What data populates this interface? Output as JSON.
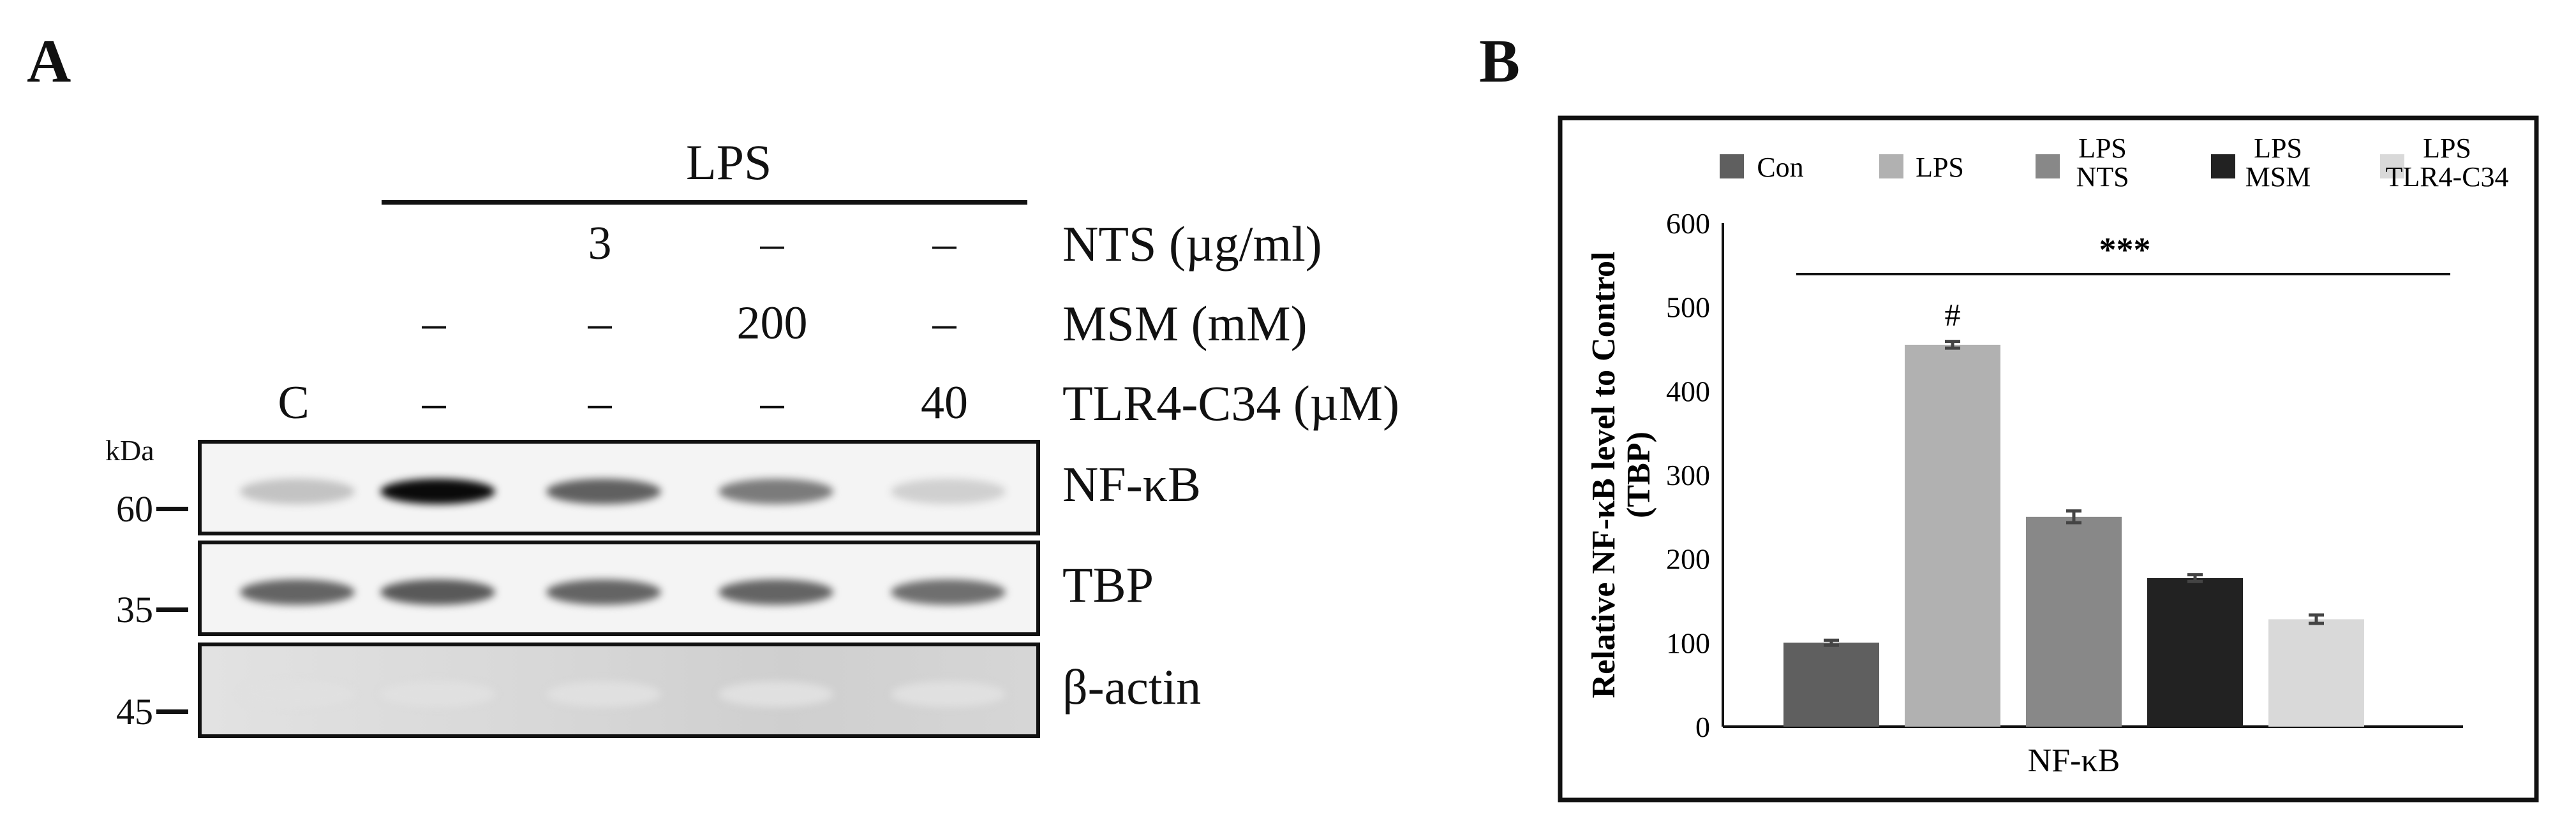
{
  "panel_a": {
    "label": "A",
    "lps_label": "LPS",
    "rows": [
      {
        "name": "NTS (µg/ml)",
        "values": [
          "",
          "",
          "3",
          "–",
          "–"
        ]
      },
      {
        "name": "MSM (mM)",
        "values": [
          "",
          "–",
          "–",
          "200",
          "–"
        ]
      },
      {
        "name": "TLR4-C34 (µM)",
        "values": [
          "C",
          "–",
          "–",
          "–",
          "40"
        ]
      }
    ],
    "kda_label": "kDa",
    "blots": [
      {
        "name": "NF-κB",
        "mw": "60",
        "intensities": [
          0.18,
          1.0,
          0.62,
          0.5,
          0.12
        ]
      },
      {
        "name": "TBP",
        "mw": "35",
        "intensities": [
          0.6,
          0.65,
          0.6,
          0.6,
          0.55
        ]
      },
      {
        "name": "β-actin",
        "mw": "45",
        "intensities": [
          0.05,
          0.05,
          0.05,
          0.05,
          0.05
        ]
      }
    ]
  },
  "panel_b": {
    "label": "B"
  },
  "chart_data": {
    "type": "bar",
    "categories": [
      "Con",
      "LPS",
      "LPS NTS",
      "LPS MSM",
      "LPS TLR4-C34"
    ],
    "values": [
      100,
      455,
      250,
      177,
      128
    ],
    "errors": [
      3,
      4,
      7,
      4,
      5
    ],
    "colors": [
      "#5f5f5f",
      "#b1b1b1",
      "#888888",
      "#222222",
      "#d9d9d9"
    ],
    "legend": [
      {
        "line1": "Con",
        "line2": ""
      },
      {
        "line1": "LPS",
        "line2": ""
      },
      {
        "line1": "LPS",
        "line2": "NTS"
      },
      {
        "line1": "LPS",
        "line2": "MSM"
      },
      {
        "line1": "LPS",
        "line2": "TLR4-C34"
      }
    ],
    "legend_position": "top",
    "ylabel_line1": "Relative NF-κB level to Control",
    "ylabel_line2": "(TBP)",
    "xlabel": "NF-κB",
    "ylim": [
      0,
      600
    ],
    "yticks": [
      0,
      100,
      200,
      300,
      400,
      500,
      600
    ],
    "annotations": {
      "significance": "***",
      "hash": "#",
      "hash_category": "LPS"
    },
    "grid": false
  }
}
